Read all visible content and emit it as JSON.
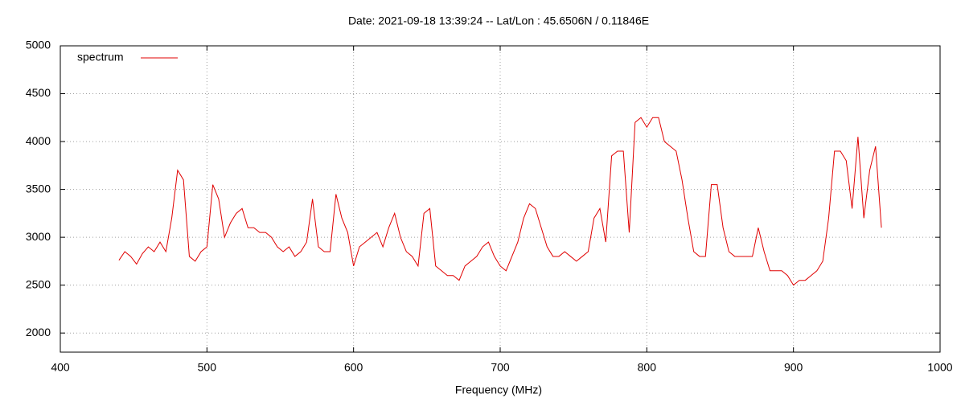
{
  "chart_data": {
    "type": "line",
    "title": "Date: 2021-09-18 13:39:24  --  Lat/Lon : 45.6506N / 0.11846E",
    "x_label": "Frequency (MHz)",
    "legend": "top-left",
    "grid": true,
    "xlim": [
      400,
      1000
    ],
    "xticks": [
      400,
      500,
      600,
      700,
      800,
      900,
      1000
    ],
    "ylim": [
      1800,
      5000
    ],
    "yticks": [
      2000,
      2500,
      3000,
      3500,
      4000,
      4500,
      5000
    ],
    "x": [
      440,
      444,
      448,
      452,
      456,
      460,
      464,
      468,
      472,
      476,
      480,
      484,
      488,
      492,
      496,
      500,
      504,
      508,
      512,
      516,
      520,
      524,
      528,
      532,
      536,
      540,
      544,
      548,
      552,
      556,
      560,
      564,
      568,
      572,
      576,
      580,
      584,
      588,
      592,
      596,
      600,
      604,
      608,
      612,
      616,
      620,
      624,
      628,
      632,
      636,
      640,
      644,
      648,
      652,
      656,
      660,
      664,
      668,
      672,
      676,
      680,
      684,
      688,
      692,
      696,
      700,
      704,
      708,
      712,
      716,
      720,
      724,
      728,
      732,
      736,
      740,
      744,
      748,
      752,
      756,
      760,
      764,
      768,
      772,
      776,
      780,
      784,
      788,
      792,
      796,
      800,
      804,
      808,
      812,
      816,
      820,
      824,
      828,
      832,
      836,
      840,
      844,
      848,
      852,
      856,
      860,
      864,
      868,
      872,
      876,
      880,
      884,
      888,
      892,
      896,
      900,
      904,
      908,
      912,
      916,
      920,
      924,
      928,
      932,
      936,
      940,
      944,
      948,
      952,
      956,
      960
    ],
    "series": [
      {
        "name": "spectrum",
        "color": "#e00000",
        "values": [
          2760,
          2850,
          2800,
          2720,
          2830,
          2900,
          2850,
          2950,
          2850,
          3200,
          3700,
          3600,
          2800,
          2750,
          2850,
          2900,
          3550,
          3400,
          3000,
          3150,
          3250,
          3300,
          3100,
          3100,
          3050,
          3050,
          3000,
          2900,
          2850,
          2900,
          2800,
          2850,
          2950,
          3400,
          2900,
          2850,
          2850,
          3450,
          3200,
          3050,
          2700,
          2900,
          2950,
          3000,
          3050,
          2900,
          3100,
          3250,
          3000,
          2850,
          2800,
          2700,
          3250,
          3300,
          2700,
          2650,
          2600,
          2600,
          2550,
          2700,
          2750,
          2800,
          2900,
          2950,
          2800,
          2700,
          2650,
          2800,
          2950,
          3200,
          3350,
          3300,
          3100,
          2900,
          2800,
          2800,
          2850,
          2800,
          2750,
          2800,
          2850,
          3200,
          3300,
          2950,
          3850,
          3900,
          3900,
          3050,
          4200,
          4250,
          4150,
          4250,
          4250,
          4000,
          3950,
          3900,
          3600,
          3200,
          2850,
          2800,
          2800,
          3550,
          3550,
          3100,
          2850,
          2800,
          2800,
          2800,
          2800,
          3100,
          2850,
          2650,
          2650,
          2650,
          2600,
          2500,
          2550,
          2550,
          2600,
          2650,
          2750,
          3200,
          3900,
          3900,
          3800,
          3300,
          4050,
          3200,
          3700,
          3950,
          3100
        ]
      }
    ]
  }
}
